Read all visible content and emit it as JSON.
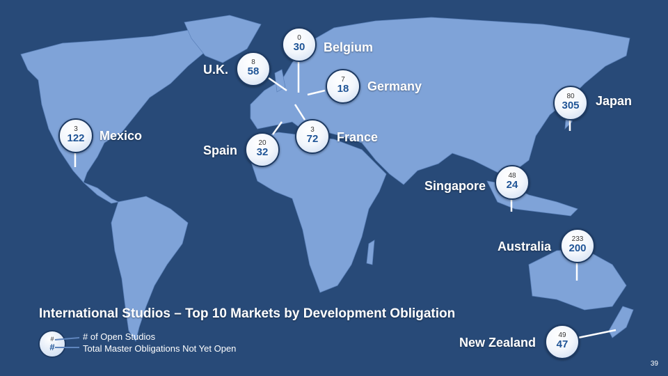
{
  "title": "International Studios – Top 10 Markets by Development Obligation",
  "legend": {
    "symbol_open": "#",
    "symbol_obligations": "#",
    "open_label": "# of Open Studios",
    "obligations_label": "Total Master Obligations Not Yet Open"
  },
  "markets": [
    {
      "name": "Belgium",
      "open": "0",
      "obligations": "30"
    },
    {
      "name": "U.K.",
      "open": "8",
      "obligations": "58"
    },
    {
      "name": "Germany",
      "open": "7",
      "obligations": "18"
    },
    {
      "name": "Japan",
      "open": "80",
      "obligations": "305"
    },
    {
      "name": "Mexico",
      "open": "3",
      "obligations": "122"
    },
    {
      "name": "France",
      "open": "3",
      "obligations": "72"
    },
    {
      "name": "Spain",
      "open": "20",
      "obligations": "32"
    },
    {
      "name": "Singapore",
      "open": "48",
      "obligations": "24"
    },
    {
      "name": "Australia",
      "open": "233",
      "obligations": "200"
    },
    {
      "name": "New Zealand",
      "open": "49",
      "obligations": "47"
    }
  ],
  "page_number": "39",
  "colors": {
    "background": "#284a78",
    "land": "#7fa3d8",
    "accent": "#1f5496"
  }
}
